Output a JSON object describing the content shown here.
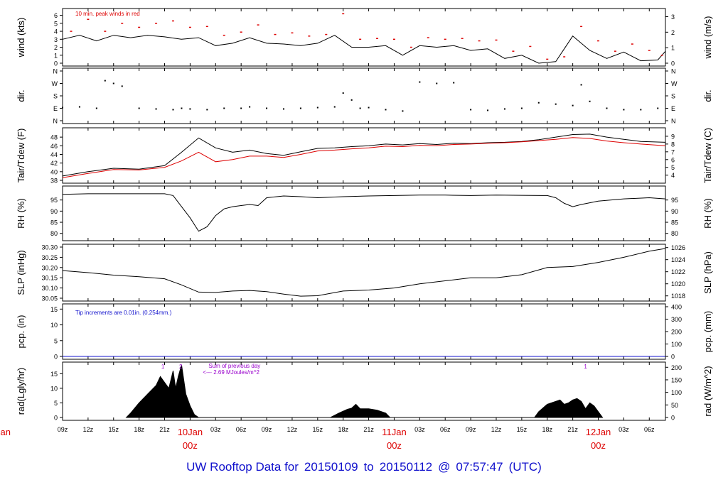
{
  "footer": {
    "prefix": "UW Rooftop Data for",
    "start": "20150109",
    "to": "to",
    "end": "20150112",
    "at": "@",
    "time": "07:57:47",
    "tz": "(UTC)"
  },
  "colors": {
    "black": "#000000",
    "red": "#dd0000",
    "blue": "#1010cc",
    "purple": "#9900cc"
  },
  "time_axis": {
    "unit": "hours from 09z 9 Jan 2015",
    "range": [
      0,
      70.9
    ],
    "ticks": [
      {
        "t": 0,
        "label": "09z"
      },
      {
        "t": 3,
        "label": "12z"
      },
      {
        "t": 6,
        "label": "15z"
      },
      {
        "t": 9,
        "label": "18z"
      },
      {
        "t": 12,
        "label": "21z"
      },
      {
        "t": 15,
        "label": "10Jan",
        "sub": "00z",
        "day": true
      },
      {
        "t": 18,
        "label": "03z"
      },
      {
        "t": 21,
        "label": "06z"
      },
      {
        "t": 24,
        "label": "09z"
      },
      {
        "t": 27,
        "label": "12z"
      },
      {
        "t": 30,
        "label": "15z"
      },
      {
        "t": 33,
        "label": "18z"
      },
      {
        "t": 36,
        "label": "21z"
      },
      {
        "t": 39,
        "label": "11Jan",
        "sub": "00z",
        "day": true
      },
      {
        "t": 42,
        "label": "03z"
      },
      {
        "t": 45,
        "label": "06z"
      },
      {
        "t": 48,
        "label": "09z"
      },
      {
        "t": 51,
        "label": "12z"
      },
      {
        "t": 54,
        "label": "15z"
      },
      {
        "t": 57,
        "label": "18z"
      },
      {
        "t": 60,
        "label": "21z"
      },
      {
        "t": 63,
        "label": "12Jan",
        "sub": "00z",
        "day": true
      },
      {
        "t": 66,
        "label": "03z"
      },
      {
        "t": 69,
        "label": "06z"
      }
    ],
    "left_cut_label": "Jan",
    "left_cut_sub": "z"
  },
  "chart_data": [
    {
      "type": "line",
      "ylabel": "wind (kts)",
      "ylabel_right": "wind (m/s)",
      "ylim": [
        0,
        6.5
      ],
      "yticks": [
        0,
        1,
        2,
        3,
        4,
        5,
        6
      ],
      "right_ticks": [
        {
          "v": 0,
          "label": "0"
        },
        {
          "v": 1.944,
          "label": "1"
        },
        {
          "v": 3.888,
          "label": "2"
        },
        {
          "v": 5.832,
          "label": "3"
        }
      ],
      "annotation": "10 min. peak winds in red",
      "series": [
        {
          "role": "wind",
          "color": "#000000",
          "x": [
            0,
            2,
            4,
            6,
            8,
            10,
            12,
            14,
            16,
            18,
            20,
            22,
            24,
            26,
            28,
            30,
            32,
            34,
            36,
            38,
            40,
            42,
            44,
            46,
            48,
            50,
            52,
            54,
            56,
            58,
            60,
            62,
            64,
            66,
            68,
            70,
            70.9
          ],
          "values": [
            3,
            3.5,
            2.8,
            3.5,
            3.2,
            3.5,
            3.3,
            3,
            3.2,
            2.2,
            2.5,
            3.2,
            2.5,
            2.4,
            2.2,
            2.5,
            3.5,
            2,
            2,
            2.2,
            1,
            2.2,
            2,
            2.2,
            1.6,
            1.8,
            0.6,
            1,
            0,
            0.2,
            3.4,
            1.6,
            0.6,
            1.4,
            0.3,
            0.4,
            1.5
          ]
        },
        {
          "role": "peak",
          "color": "#dd0000",
          "x": [
            1,
            3,
            5,
            7,
            9,
            11,
            13,
            15,
            17,
            19,
            21,
            23,
            25,
            27,
            29,
            31,
            33,
            35,
            37,
            39,
            41,
            43,
            45,
            47,
            49,
            51,
            53,
            55,
            57,
            59,
            61,
            63,
            65,
            67,
            69,
            70.5
          ],
          "values": [
            4,
            5.5,
            4,
            5,
            4.5,
            5,
            5.3,
            4.5,
            4.6,
            3.5,
            3.9,
            4.8,
            3.6,
            3.8,
            3.4,
            3.6,
            6.2,
            3,
            3.1,
            3,
            2,
            3.2,
            3,
            3.1,
            2.8,
            2.9,
            1.5,
            2.1,
            0.5,
            0.8,
            4.6,
            2.8,
            1.5,
            2.4,
            1.6,
            1
          ]
        }
      ]
    },
    {
      "type": "scatter",
      "ylabel": "dir.",
      "ylabel_right": "dir.",
      "ylim": [
        0,
        360
      ],
      "tick_labels": [
        {
          "v": 0,
          "label": "N"
        },
        {
          "v": 90,
          "label": "E"
        },
        {
          "v": 180,
          "label": "S"
        },
        {
          "v": 270,
          "label": "W"
        },
        {
          "v": 360,
          "label": "N"
        }
      ],
      "series": [
        {
          "role": "direction",
          "color": "#000000",
          "x": [
            0,
            2,
            4,
            5,
            6,
            7,
            9,
            11,
            13,
            14,
            15,
            17,
            19,
            21,
            22,
            24,
            26,
            28,
            30,
            32,
            33,
            34,
            35,
            36,
            38,
            40,
            42,
            44,
            46,
            48,
            50,
            52,
            54,
            56,
            58,
            60,
            61,
            62,
            64,
            66,
            68,
            70
          ],
          "values": [
            95,
            100,
            90,
            290,
            270,
            250,
            90,
            85,
            80,
            90,
            85,
            80,
            90,
            90,
            100,
            90,
            85,
            90,
            95,
            100,
            200,
            150,
            90,
            95,
            80,
            70,
            280,
            270,
            275,
            80,
            75,
            85,
            90,
            130,
            120,
            110,
            260,
            140,
            90,
            80,
            80,
            90
          ]
        }
      ]
    },
    {
      "type": "line",
      "ylabel": "Tair/Tdew (F)",
      "ylabel_right": "Tair/Tdew (C)",
      "ylim": [
        38,
        49.5
      ],
      "yticks": [
        38,
        40,
        42,
        44,
        46,
        48
      ],
      "right_ticks": [
        {
          "v": 39.2,
          "label": "4"
        },
        {
          "v": 41,
          "label": "5"
        },
        {
          "v": 42.8,
          "label": "6"
        },
        {
          "v": 44.6,
          "label": "7"
        },
        {
          "v": 46.4,
          "label": "8"
        },
        {
          "v": 48.2,
          "label": "9"
        }
      ],
      "series": [
        {
          "role": "Tair",
          "color": "#000000",
          "x": [
            0,
            3,
            6,
            9,
            12,
            14,
            16,
            18,
            20,
            22,
            24,
            26,
            28,
            30,
            32,
            34,
            36,
            38,
            40,
            42,
            44,
            46,
            48,
            50,
            52,
            54,
            56,
            58,
            60,
            62,
            64,
            66,
            68,
            70.9
          ],
          "values": [
            39,
            40,
            40.8,
            40.6,
            41.4,
            44.5,
            47.8,
            45.5,
            44.5,
            45,
            44.2,
            43.8,
            44.6,
            45.4,
            45.5,
            45.8,
            46,
            46.4,
            46.2,
            46.5,
            46.3,
            46.6,
            46.5,
            46.7,
            46.8,
            47,
            47.4,
            48,
            48.6,
            48.7,
            48,
            47.5,
            47,
            46.8
          ]
        },
        {
          "role": "Tdew",
          "color": "#dd0000",
          "x": [
            0,
            3,
            6,
            9,
            12,
            14,
            16,
            18,
            20,
            22,
            24,
            26,
            28,
            30,
            32,
            34,
            36,
            38,
            40,
            42,
            44,
            46,
            48,
            50,
            52,
            54,
            56,
            58,
            60,
            62,
            64,
            66,
            68,
            70.9
          ],
          "values": [
            38.6,
            39.6,
            40.5,
            40.4,
            41,
            42.5,
            44.5,
            42.3,
            42.8,
            43.6,
            43.6,
            43.3,
            44,
            44.8,
            45,
            45.3,
            45.5,
            45.9,
            45.8,
            46.1,
            46,
            46.3,
            46.4,
            46.6,
            46.7,
            46.9,
            47.2,
            47.5,
            47.9,
            47.7,
            47.1,
            46.7,
            46.4,
            46
          ]
        }
      ]
    },
    {
      "type": "line",
      "ylabel": "RH (%)",
      "ylabel_right": "RH (%)",
      "ylim": [
        78,
        100
      ],
      "yticks": [
        80,
        85,
        90,
        95
      ],
      "right_ticks": [
        {
          "v": 80,
          "label": "80"
        },
        {
          "v": 85,
          "label": "85"
        },
        {
          "v": 90,
          "label": "90"
        },
        {
          "v": 95,
          "label": "95"
        }
      ],
      "series": [
        {
          "role": "RH",
          "color": "#000000",
          "x": [
            0,
            3,
            6,
            9,
            12,
            13,
            14,
            15,
            16,
            17,
            18,
            19,
            20,
            21,
            22,
            23,
            24,
            26,
            28,
            30,
            33,
            36,
            39,
            42,
            45,
            48,
            51,
            54,
            57,
            58,
            59,
            60,
            61,
            63,
            66,
            69,
            70.9
          ],
          "values": [
            97.5,
            97.8,
            97.8,
            97.8,
            97.8,
            97,
            92,
            87,
            81,
            83,
            88,
            91,
            92,
            92.5,
            93,
            92.5,
            96,
            96.8,
            96.5,
            96,
            96.5,
            96.8,
            97,
            97.2,
            97.2,
            97,
            97.2,
            97.1,
            97,
            96,
            93.5,
            92,
            93,
            94.5,
            95.5,
            96,
            95.5
          ]
        }
      ]
    },
    {
      "type": "line",
      "ylabel": "SLP (inHg)",
      "ylabel_right": "SLP (hPa)",
      "ylim": [
        30.05,
        30.3
      ],
      "yticks": [
        30.05,
        30.1,
        30.15,
        30.2,
        30.25,
        30.3
      ],
      "right_ticks": [
        {
          "v": 30.0614,
          "label": "1018"
        },
        {
          "v": 30.1204,
          "label": "1020"
        },
        {
          "v": 30.1795,
          "label": "1022"
        },
        {
          "v": 30.2386,
          "label": "1024"
        },
        {
          "v": 30.2976,
          "label": "1026"
        }
      ],
      "series": [
        {
          "role": "SLP",
          "color": "#000000",
          "x": [
            0,
            3,
            6,
            9,
            12,
            14,
            16,
            18,
            20,
            22,
            24,
            26,
            28,
            30,
            33,
            36,
            39,
            42,
            45,
            48,
            51,
            54,
            57,
            60,
            63,
            66,
            69,
            70.9
          ],
          "values": [
            30.185,
            30.175,
            30.163,
            30.155,
            30.145,
            30.115,
            30.08,
            30.078,
            30.085,
            30.088,
            30.082,
            30.07,
            30.06,
            30.062,
            30.085,
            30.09,
            30.1,
            30.12,
            30.135,
            30.15,
            30.15,
            30.165,
            30.2,
            30.205,
            30.225,
            30.25,
            30.28,
            30.293
          ]
        }
      ]
    },
    {
      "type": "line",
      "ylabel": "pcp. (in)",
      "ylabel_right": "pcp. (mm)",
      "ylim": [
        0,
        15.75
      ],
      "yticks": [
        0,
        5,
        10,
        15
      ],
      "right_ticks": [
        {
          "v": 0,
          "label": "0"
        },
        {
          "v": 3.937,
          "label": "100"
        },
        {
          "v": 7.874,
          "label": "200"
        },
        {
          "v": 11.811,
          "label": "300"
        },
        {
          "v": 15.748,
          "label": "400"
        }
      ],
      "annotation": "Tip increments are 0.01in. (0.254mm.)",
      "series": [
        {
          "role": "precip",
          "color": "#1010cc",
          "x": [
            0,
            70.9
          ],
          "values": [
            0,
            0
          ]
        }
      ]
    },
    {
      "type": "area",
      "ylabel": "rad(Lgly/hr)",
      "ylabel_right": "rad (W/m^2)",
      "ylim": [
        0,
        18
      ],
      "yticks": [
        0,
        5,
        10,
        15
      ],
      "right_ticks": [
        {
          "v": 0,
          "label": "0"
        },
        {
          "v": 4.3,
          "label": "50"
        },
        {
          "v": 8.6,
          "label": "100"
        },
        {
          "v": 12.9,
          "label": "150"
        },
        {
          "v": 17.2,
          "label": "200"
        }
      ],
      "annotation": "Sum of previous day",
      "annotation2": "<--- 2.69 MJoules/m^2",
      "markers": [
        {
          "t": 11.8,
          "label": "1"
        },
        {
          "t": 13.9,
          "label": "2"
        },
        {
          "t": 61.5,
          "label": "1"
        }
      ],
      "series": [
        {
          "role": "radiation",
          "color": "#000000",
          "x": [
            7.5,
            8,
            9,
            10,
            11,
            11.5,
            12,
            12.5,
            13,
            13.3,
            13.6,
            14,
            14.5,
            15,
            15.5,
            16,
            31.5,
            32.5,
            33.5,
            34,
            34.5,
            35,
            36,
            37,
            38,
            38.5,
            55.5,
            56,
            57,
            58,
            58.5,
            59,
            59.5,
            60,
            60.5,
            61,
            61.5,
            62,
            62.5,
            63,
            63.5
          ],
          "values": [
            0,
            1.5,
            5,
            8,
            11,
            14,
            12,
            10,
            16,
            10,
            14,
            18,
            8,
            4,
            1,
            0,
            0,
            1.5,
            2.8,
            3.2,
            4.5,
            3,
            3,
            2.5,
            1.5,
            0,
            0,
            2,
            4.5,
            5.5,
            6,
            4.5,
            5,
            6,
            6.5,
            5.5,
            3,
            5,
            4,
            2,
            0
          ]
        }
      ]
    }
  ]
}
